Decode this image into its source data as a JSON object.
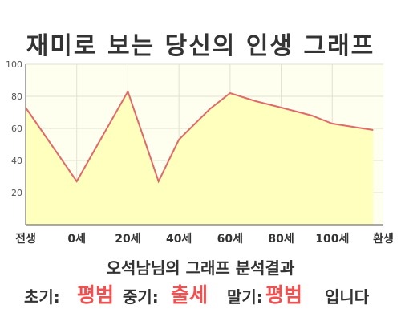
{
  "title": "재미로 보는 당신의 인생 그래프",
  "chart_data": {
    "type": "area",
    "title": "재미로 보는 당신의 인생 그래프",
    "x": [
      0,
      1,
      2,
      2.6,
      3,
      3.6,
      4,
      4.5,
      5,
      5.6,
      6,
      6.8
    ],
    "y": [
      73,
      27,
      83,
      27,
      53,
      72,
      82,
      77,
      73,
      68,
      63,
      59
    ],
    "x_tick_labels": [
      "전생",
      "0세",
      "20세",
      "40세",
      "60세",
      "80세",
      "100세",
      "환생"
    ],
    "x_tick_positions": [
      0,
      1,
      2,
      3,
      4,
      5,
      6,
      7
    ],
    "y_ticks": [
      20,
      40,
      60,
      80,
      100
    ],
    "xlim": [
      0,
      7
    ],
    "ylim": [
      0,
      100
    ],
    "grid": true,
    "line_color": "#e06a6a",
    "fill_color": "#ffffbe",
    "plot_bg": "#fffff0",
    "grid_color": "#e2e2d0"
  },
  "subtitle": "오석남님의 그래프 분석결과",
  "result": {
    "early_label": "초기:",
    "early_value": "평범",
    "middle_label": "중기:",
    "middle_value": "출세",
    "late_label": "말기:",
    "late_value": "평범",
    "suffix": "입니다"
  }
}
